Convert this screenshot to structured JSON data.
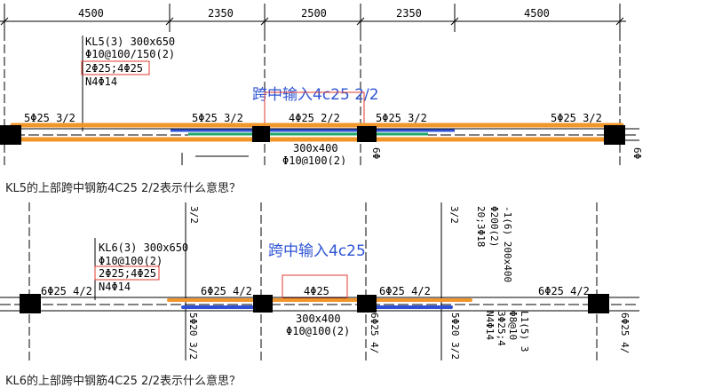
{
  "panel1": {
    "dimensions": [
      "4500",
      "2350",
      "2500",
      "2350",
      "4500"
    ],
    "beam_label": [
      "KL5(3) 300x650",
      "Φ10@100/150(2)",
      "2Φ25;4Φ25",
      "N4Φ14"
    ],
    "annotation": "跨中输入4c25 2/2",
    "rebar_labels": [
      "5Φ25 3/2",
      "5Φ25 3/2",
      "4Φ25 2/2",
      "5Φ25 3/2",
      "5Φ25 3/2"
    ],
    "mid_beam": [
      "300x400",
      "Φ10@100(2)"
    ],
    "edge_text": "6Φ"
  },
  "question1": "KL5的上部跨中钢筋4C25 2/2表示什么意思？",
  "panel2": {
    "beam_label": [
      "KL6(3) 300x650",
      "Φ10@100(2)",
      "2Φ25;4Φ25",
      "N4Φ14"
    ],
    "annotation": "跨中输入4c25",
    "rebar_labels": [
      "6Φ25 4/2",
      "6Φ25 4/2",
      "4Φ25",
      "6Φ25 4/2",
      "6Φ25 4/2"
    ],
    "mid_beam": [
      "300x400",
      "Φ10@100(2)"
    ],
    "vertical_texts": [
      "3/2",
      "3/2",
      "-1(6) 200x400",
      "Φ200(2)",
      "20;3Φ18",
      "5Φ20 3/2",
      "6Φ25 4/",
      "5Φ20 3/2",
      "L1(5) 3",
      "Φ8@10",
      "3Φ25;4",
      "N4Φ14",
      "6Φ25 4/"
    ]
  },
  "question2": "KL6的上部跨中钢筋4C25 2/2表示什么意思？",
  "colors": {
    "orange": "#f0962a",
    "blue": "#2f4fd6",
    "green": "#22a86a",
    "red": "#e03a2f",
    "annotation": "#2f55d4"
  }
}
